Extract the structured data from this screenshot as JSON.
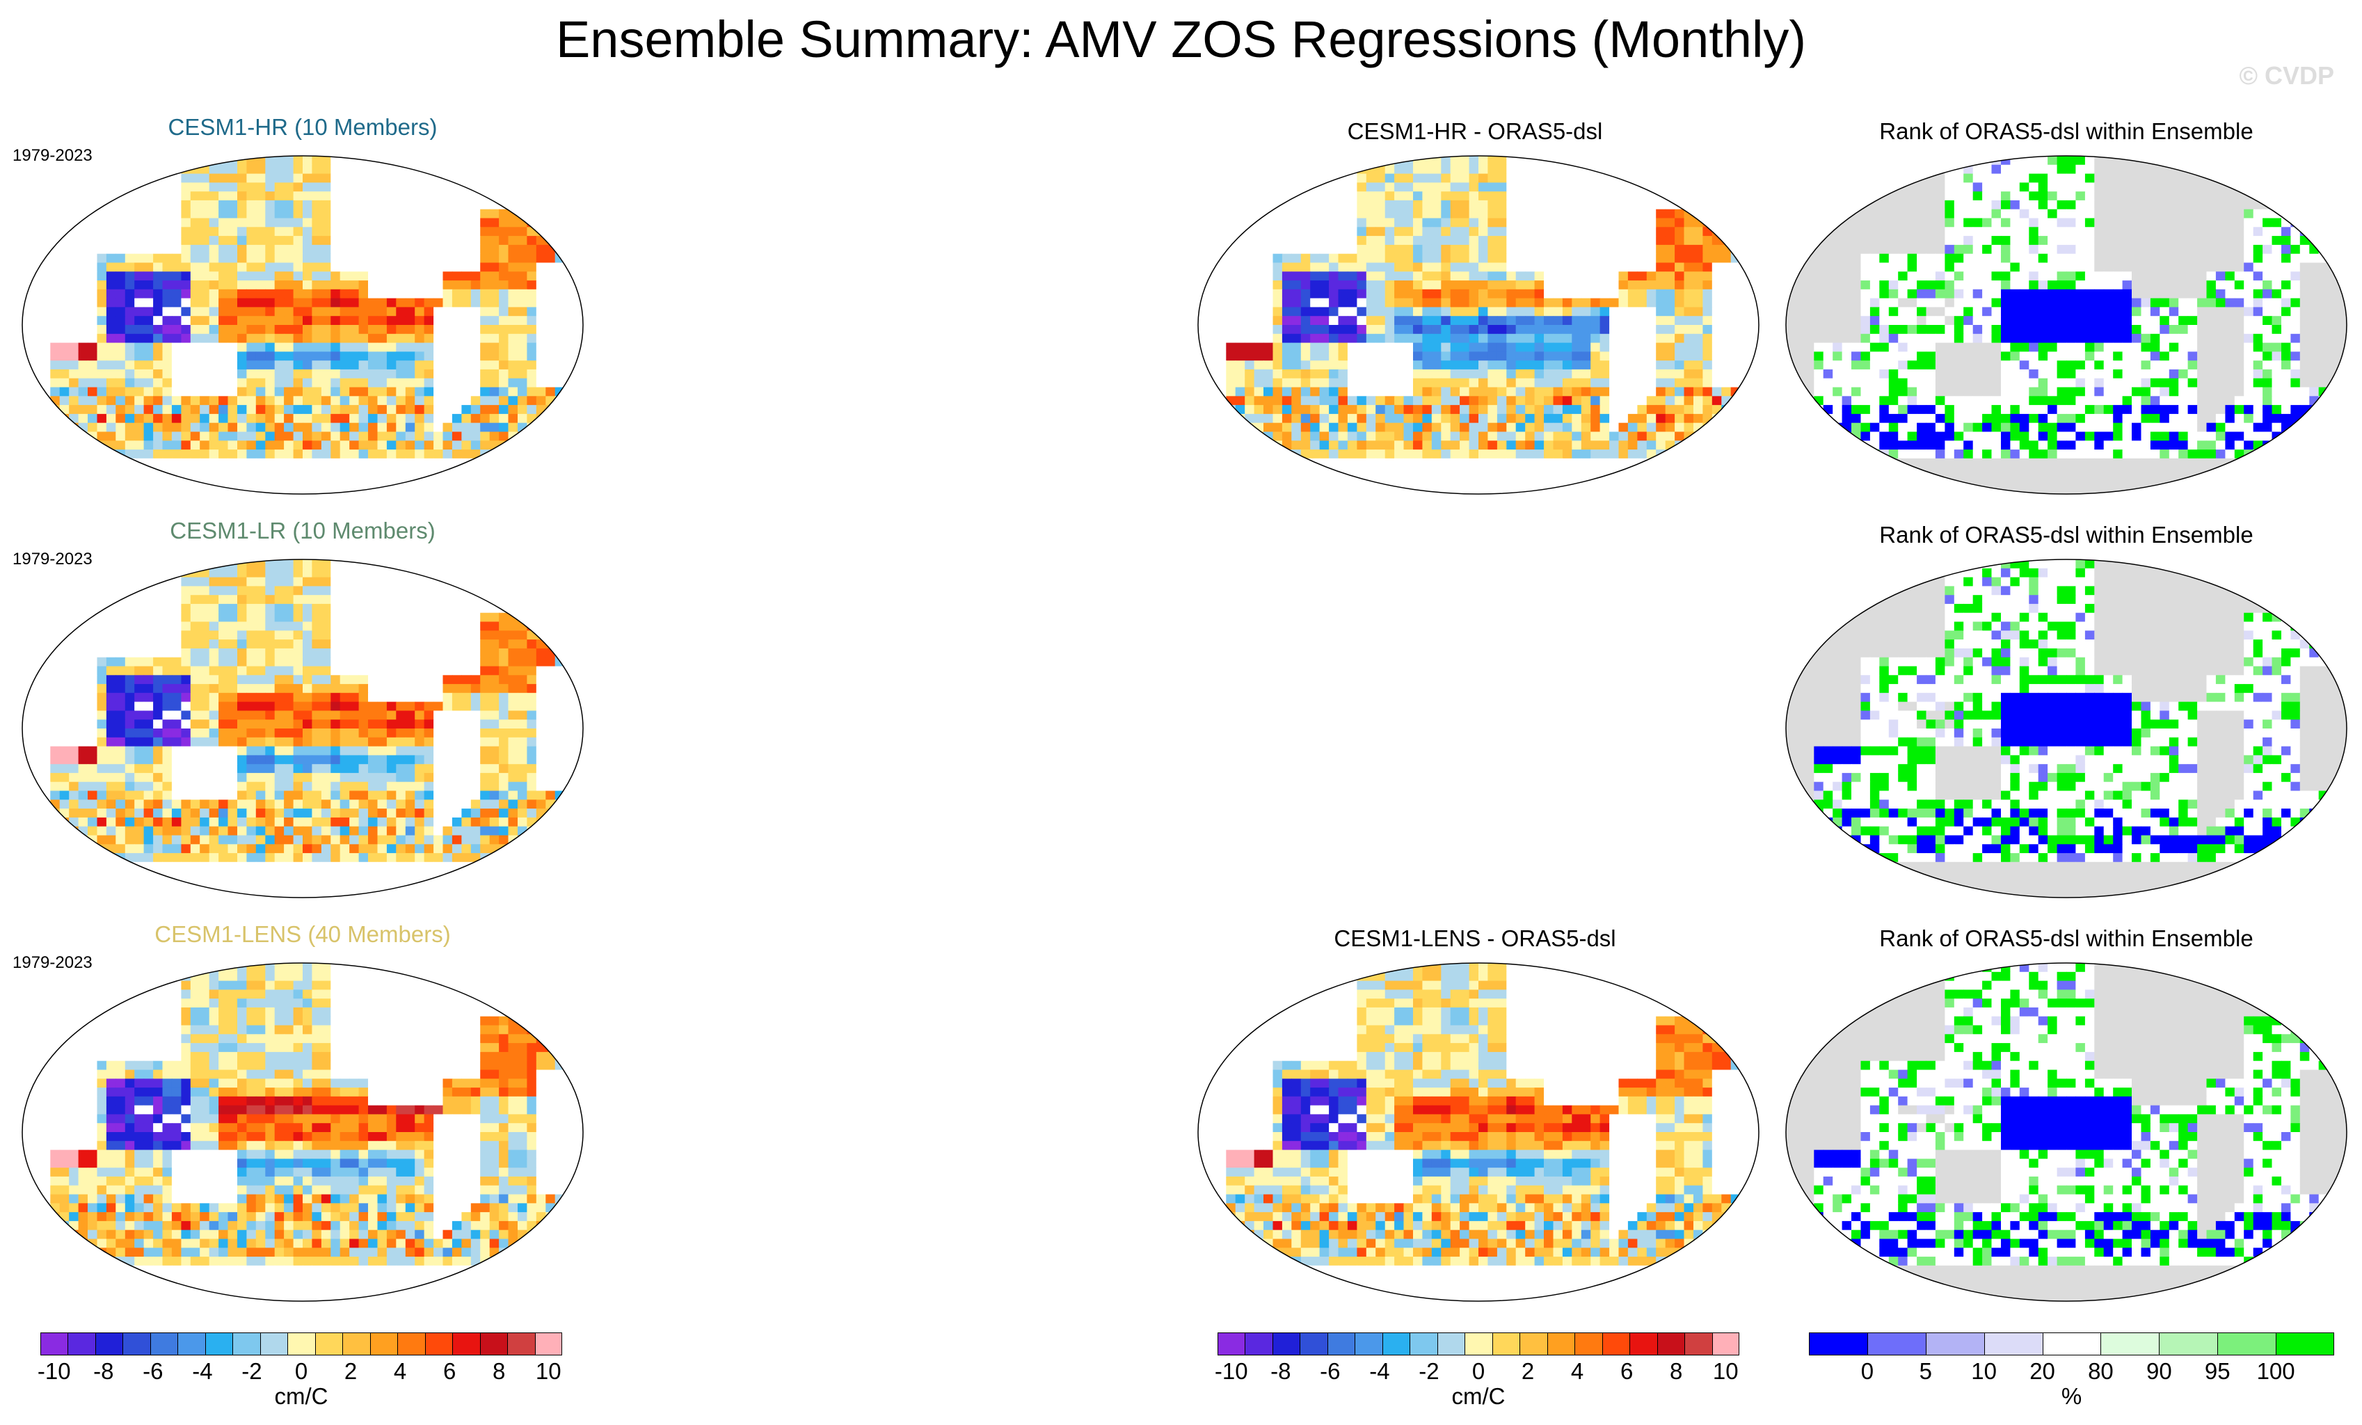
{
  "title": "Ensemble Summary: AMV ZOS Regressions (Monthly)",
  "watermark": "© CVDP",
  "colors": {
    "hr_title": "#1f6a8a",
    "lr_title": "#5e8a6e",
    "lens_title": "#d8c36a",
    "diverging": [
      "#8a2be2",
      "#5a28e0",
      "#2020d8",
      "#3050d8",
      "#3f7be0",
      "#4b98ea",
      "#2ab0f0",
      "#7ec8ee",
      "#b0d8ec",
      "#fff7b0",
      "#ffd75a",
      "#ffc040",
      "#ffa020",
      "#ff7a10",
      "#ff4a0a",
      "#e81410",
      "#c8101a",
      "#d04040",
      "#ffb0b8"
    ],
    "rank": [
      "#0000ff",
      "#6e6efa",
      "#b3b3f5",
      "#dcdcf8",
      "#ffffff",
      "#ddfcdd",
      "#b6f5b6",
      "#7cf07c",
      "#00f000"
    ]
  },
  "panels": [
    {
      "id": "hr-ens",
      "title": "CESM1-HR (10 Members)",
      "years": "1979-2023",
      "kind": "diverging"
    },
    {
      "id": "hr-diff",
      "title": "CESM1-HR - ORAS5-dsl",
      "kind": "diverging"
    },
    {
      "id": "hr-rank",
      "title": "Rank of ORAS5-dsl within Ensemble",
      "kind": "rank"
    },
    {
      "id": "lr-ens",
      "title": "CESM1-LR (10 Members)",
      "years": "1979-2023",
      "kind": "diverging"
    },
    {
      "id": "lr-rank",
      "title": "Rank of ORAS5-dsl within Ensemble",
      "kind": "rank"
    },
    {
      "id": "lens-ens",
      "title": "CESM1-LENS (40 Members)",
      "years": "1979-2023",
      "kind": "diverging"
    },
    {
      "id": "lens-diff",
      "title": "CESM1-LENS - ORAS5-dsl",
      "kind": "diverging"
    },
    {
      "id": "lens-rank",
      "title": "Rank of ORAS5-dsl within Ensemble",
      "kind": "rank"
    }
  ],
  "colorbars": {
    "diverging": {
      "labels": [
        "-10",
        "-8",
        "-6",
        "-4",
        "-2",
        "0",
        "2",
        "4",
        "6",
        "8",
        "10"
      ],
      "unit": "cm/C"
    },
    "rank": {
      "labels": [
        "0",
        "5",
        "10",
        "20",
        "80",
        "90",
        "95",
        "100"
      ],
      "unit": "%"
    }
  },
  "chart_data": {
    "type": "heatmap",
    "title": "Ensemble Summary: AMV ZOS Regressions (Monthly)",
    "period": "1979-2023",
    "variable": "ZOS regression on AMV",
    "units": "cm/C",
    "diverging_scale": {
      "min": -10,
      "max": 10,
      "step": 1,
      "tick_labels": [
        -10,
        -8,
        -6,
        -4,
        -2,
        0,
        2,
        4,
        6,
        8,
        10
      ]
    },
    "rank_scale": {
      "units": "%",
      "bounds": [
        0,
        5,
        10,
        20,
        80,
        90,
        95,
        100
      ]
    },
    "panels": [
      {
        "row": 1,
        "col": 1,
        "title": "CESM1-HR (10 Members)",
        "field": "ensemble mean regression"
      },
      {
        "row": 1,
        "col": 3,
        "title": "CESM1-HR - ORAS5-dsl",
        "field": "difference"
      },
      {
        "row": 1,
        "col": 4,
        "title": "Rank of ORAS5-dsl within Ensemble",
        "field": "rank %"
      },
      {
        "row": 2,
        "col": 1,
        "title": "CESM1-LR (10 Members)",
        "field": "ensemble mean regression"
      },
      {
        "row": 2,
        "col": 4,
        "title": "Rank of ORAS5-dsl within Ensemble",
        "field": "rank %"
      },
      {
        "row": 3,
        "col": 1,
        "title": "CESM1-LENS (40 Members)",
        "field": "ensemble mean regression"
      },
      {
        "row": 3,
        "col": 3,
        "title": "CESM1-LENS - ORAS5-dsl",
        "field": "difference"
      },
      {
        "row": 3,
        "col": 4,
        "title": "Rank of ORAS5-dsl within Ensemble",
        "field": "rank %"
      }
    ]
  }
}
